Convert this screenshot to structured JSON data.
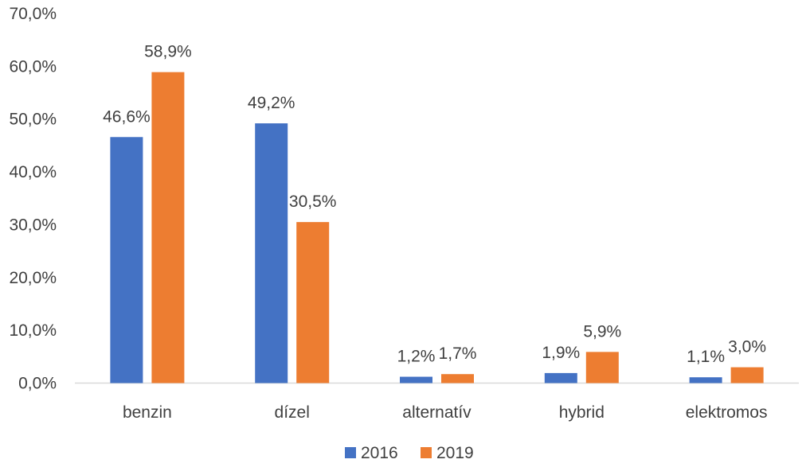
{
  "chart_data": {
    "type": "bar",
    "categories": [
      "benzin",
      "dízel",
      "alternatív",
      "hybrid",
      "elektromos"
    ],
    "series": [
      {
        "name": "2016",
        "color": "#4472C4",
        "values": [
          46.6,
          49.2,
          1.2,
          1.9,
          1.1
        ],
        "labels": [
          "46,6%",
          "49,2%",
          "1,2%",
          "1,9%",
          "1,1%"
        ]
      },
      {
        "name": "2019",
        "color": "#ED7D31",
        "values": [
          58.9,
          30.5,
          1.7,
          5.9,
          3.0
        ],
        "labels": [
          "58,9%",
          "30,5%",
          "1,7%",
          "5,9%",
          "3,0%"
        ]
      }
    ],
    "y_ticks": [
      0,
      10,
      20,
      30,
      40,
      50,
      60,
      70
    ],
    "y_tick_labels": [
      "0,0%",
      "10,0%",
      "20,0%",
      "30,0%",
      "40,0%",
      "50,0%",
      "60,0%",
      "70,0%"
    ],
    "ylim": [
      0,
      70
    ],
    "grid": false,
    "legend": "bottom-center",
    "axis_color": "#D9D9D9"
  }
}
